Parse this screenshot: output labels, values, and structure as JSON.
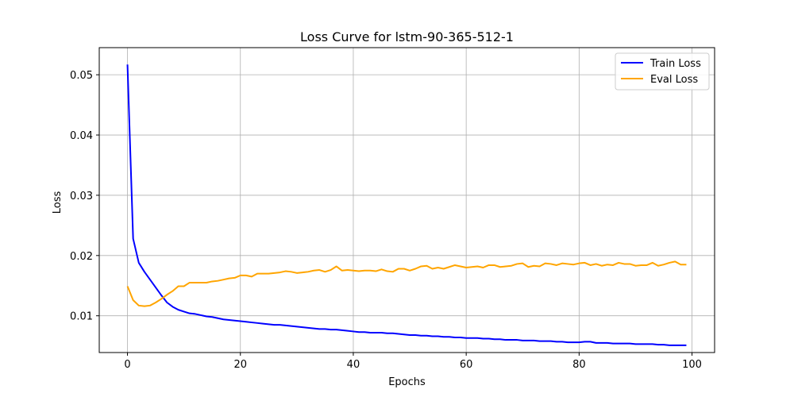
{
  "chart_data": {
    "type": "line",
    "title": "Loss Curve for lstm-90-365-512-1",
    "xlabel": "Epochs",
    "ylabel": "Loss",
    "xlim": [
      -5,
      104
    ],
    "ylim": [
      0.0039,
      0.0545
    ],
    "xticks": [
      0,
      20,
      40,
      60,
      80,
      100
    ],
    "yticks": [
      0.01,
      0.02,
      0.03,
      0.04,
      0.05
    ],
    "xtick_labels": [
      "0",
      "20",
      "40",
      "60",
      "80",
      "100"
    ],
    "ytick_labels": [
      "0.01",
      "0.02",
      "0.03",
      "0.04",
      "0.05"
    ],
    "grid": true,
    "legend_position": "top-right",
    "series": [
      {
        "name": "Train Loss",
        "color": "#0000ff",
        "x": [
          0,
          1,
          2,
          3,
          4,
          5,
          6,
          7,
          8,
          9,
          10,
          11,
          12,
          13,
          14,
          15,
          16,
          17,
          18,
          19,
          20,
          21,
          22,
          23,
          24,
          25,
          26,
          27,
          28,
          29,
          30,
          31,
          32,
          33,
          34,
          35,
          36,
          37,
          38,
          39,
          40,
          41,
          42,
          43,
          44,
          45,
          46,
          47,
          48,
          49,
          50,
          51,
          52,
          53,
          54,
          55,
          56,
          57,
          58,
          59,
          60,
          61,
          62,
          63,
          64,
          65,
          66,
          67,
          68,
          69,
          70,
          71,
          72,
          73,
          74,
          75,
          76,
          77,
          78,
          79,
          80,
          81,
          82,
          83,
          84,
          85,
          86,
          87,
          88,
          89,
          90,
          91,
          92,
          93,
          94,
          95,
          96,
          97,
          98,
          99
        ],
        "values": [
          0.0517,
          0.0228,
          0.0188,
          0.0173,
          0.016,
          0.0147,
          0.0134,
          0.0122,
          0.0115,
          0.011,
          0.0107,
          0.0104,
          0.0103,
          0.0101,
          0.0099,
          0.0098,
          0.0096,
          0.0094,
          0.0093,
          0.0092,
          0.0091,
          0.009,
          0.0089,
          0.0088,
          0.0087,
          0.0086,
          0.0085,
          0.0085,
          0.0084,
          0.0083,
          0.0082,
          0.0081,
          0.008,
          0.0079,
          0.0078,
          0.0078,
          0.0077,
          0.0077,
          0.0076,
          0.0075,
          0.0074,
          0.0073,
          0.0073,
          0.0072,
          0.0072,
          0.0072,
          0.0071,
          0.0071,
          0.007,
          0.0069,
          0.0068,
          0.0068,
          0.0067,
          0.0067,
          0.0066,
          0.0066,
          0.0065,
          0.0065,
          0.0064,
          0.0064,
          0.0063,
          0.0063,
          0.0063,
          0.0062,
          0.0062,
          0.0061,
          0.0061,
          0.006,
          0.006,
          0.006,
          0.0059,
          0.0059,
          0.0059,
          0.0058,
          0.0058,
          0.0058,
          0.0057,
          0.0057,
          0.0056,
          0.0056,
          0.0056,
          0.0057,
          0.0057,
          0.0055,
          0.0055,
          0.0055,
          0.0054,
          0.0054,
          0.0054,
          0.0054,
          0.0053,
          0.0053,
          0.0053,
          0.0053,
          0.0052,
          0.0052,
          0.0051,
          0.0051,
          0.0051,
          0.0051
        ]
      },
      {
        "name": "Eval Loss",
        "color": "#ffa500",
        "x": [
          0,
          1,
          2,
          3,
          4,
          5,
          6,
          7,
          8,
          9,
          10,
          11,
          12,
          13,
          14,
          15,
          16,
          17,
          18,
          19,
          20,
          21,
          22,
          23,
          24,
          25,
          26,
          27,
          28,
          29,
          30,
          31,
          32,
          33,
          34,
          35,
          36,
          37,
          38,
          39,
          40,
          41,
          42,
          43,
          44,
          45,
          46,
          47,
          48,
          49,
          50,
          51,
          52,
          53,
          54,
          55,
          56,
          57,
          58,
          59,
          60,
          61,
          62,
          63,
          64,
          65,
          66,
          67,
          68,
          69,
          70,
          71,
          72,
          73,
          74,
          75,
          76,
          77,
          78,
          79,
          80,
          81,
          82,
          83,
          84,
          85,
          86,
          87,
          88,
          89,
          90,
          91,
          92,
          93,
          94,
          95,
          96,
          97,
          98,
          99
        ],
        "values": [
          0.0149,
          0.0126,
          0.0117,
          0.0116,
          0.0117,
          0.0122,
          0.0128,
          0.0135,
          0.0141,
          0.0149,
          0.0149,
          0.0155,
          0.0155,
          0.0155,
          0.0155,
          0.0157,
          0.0158,
          0.016,
          0.0162,
          0.0163,
          0.0167,
          0.0167,
          0.0165,
          0.017,
          0.017,
          0.017,
          0.0171,
          0.0172,
          0.0174,
          0.0173,
          0.0171,
          0.0172,
          0.0173,
          0.0175,
          0.0176,
          0.0173,
          0.0176,
          0.0182,
          0.0175,
          0.0176,
          0.0175,
          0.0174,
          0.0175,
          0.0175,
          0.0174,
          0.0177,
          0.0174,
          0.0173,
          0.0178,
          0.0178,
          0.0175,
          0.0178,
          0.0182,
          0.0183,
          0.0178,
          0.018,
          0.0178,
          0.0181,
          0.0184,
          0.0182,
          0.018,
          0.0181,
          0.0182,
          0.018,
          0.0184,
          0.0184,
          0.0181,
          0.0182,
          0.0183,
          0.0186,
          0.0187,
          0.0181,
          0.0183,
          0.0182,
          0.0187,
          0.0186,
          0.0184,
          0.0187,
          0.0186,
          0.0185,
          0.0187,
          0.0188,
          0.0184,
          0.0186,
          0.0183,
          0.0185,
          0.0184,
          0.0188,
          0.0186,
          0.0186,
          0.0183,
          0.0184,
          0.0184,
          0.0188,
          0.0183,
          0.0185,
          0.0188,
          0.019,
          0.0185,
          0.0185
        ]
      }
    ]
  }
}
